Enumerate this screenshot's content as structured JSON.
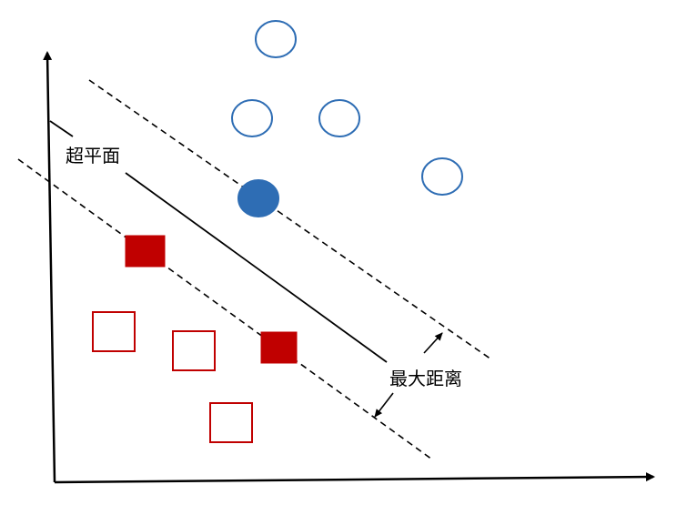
{
  "labels": {
    "hyperplane": "超平面",
    "max_margin": "最大距离"
  },
  "classes": {
    "positive": {
      "shape": "circle",
      "color": "#2E6DB4",
      "total": 5,
      "support_vectors": 1
    },
    "negative": {
      "shape": "square",
      "color": "#C00000",
      "total": 5,
      "support_vectors": 2
    }
  },
  "colors": {
    "axis": "#000000",
    "hyperplane": "#000000",
    "margin_line": "#000000",
    "background": "#ffffff"
  }
}
